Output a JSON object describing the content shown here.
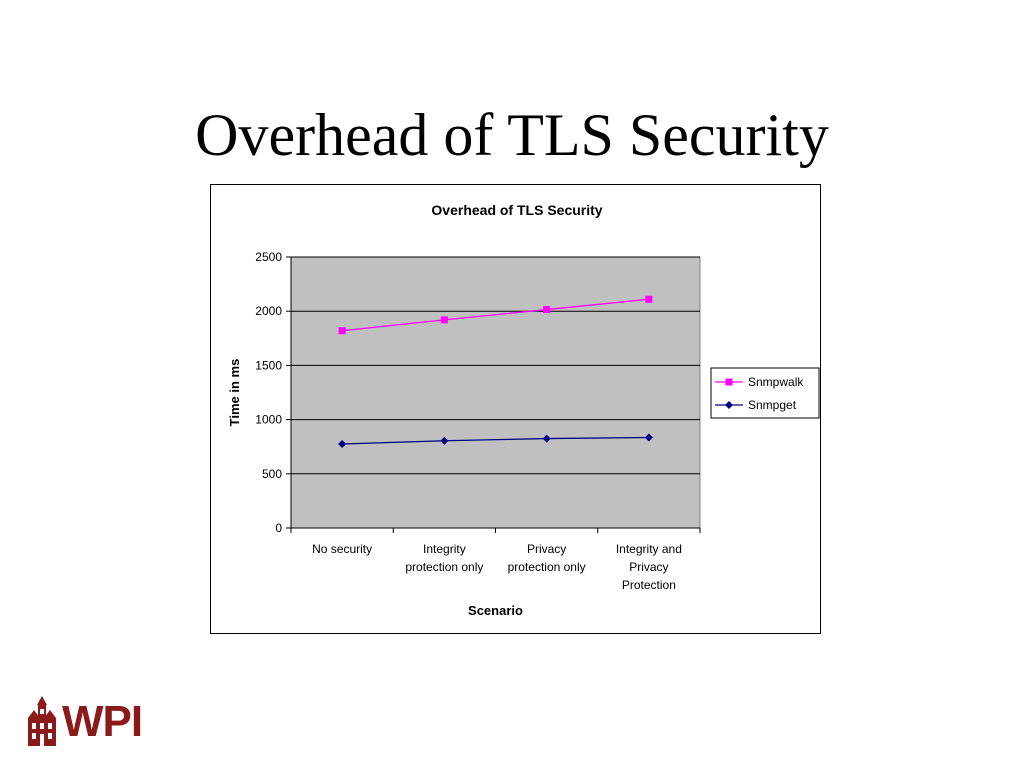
{
  "slide": {
    "title": "Overhead of TLS Security"
  },
  "logo": {
    "text": "WPI",
    "color": "#8b1a1a"
  },
  "chart_data": {
    "type": "line",
    "title": "Overhead of TLS Security",
    "xlabel": "Scenario",
    "ylabel": "Time in ms",
    "categories": [
      [
        "No security"
      ],
      [
        "Integrity",
        "protection only"
      ],
      [
        "Privacy",
        "protection only"
      ],
      [
        "Integrity and",
        "Privacy",
        "Protection"
      ]
    ],
    "ylim": [
      0,
      2500
    ],
    "yticks": [
      0,
      500,
      1000,
      1500,
      2000,
      2500
    ],
    "grid": true,
    "legend": "right",
    "plot_background": "#c0c0c0",
    "series": [
      {
        "name": "Snmpwalk",
        "values": [
          1820,
          1920,
          2015,
          2110
        ],
        "color": "#ff00ff",
        "marker": "square"
      },
      {
        "name": "Snmpget",
        "values": [
          775,
          805,
          825,
          835
        ],
        "color": "#000080",
        "marker": "diamond"
      }
    ]
  }
}
